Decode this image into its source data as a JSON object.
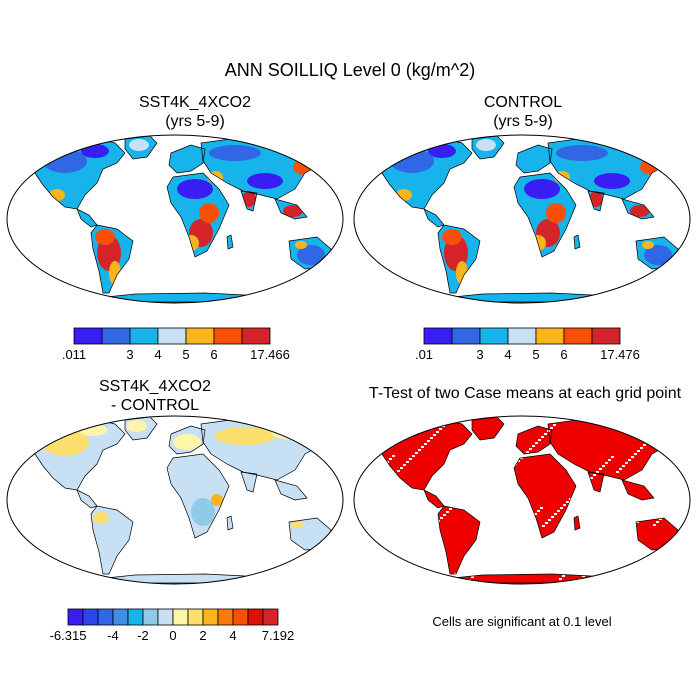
{
  "title": "ANN SOILLIQ Level 0 (kg/m^2)",
  "panels": [
    {
      "id": "sst4k",
      "title_line1": "SST4K_4XCO2",
      "title_line2": "(yrs 5-9)",
      "colorbar": {
        "colors": [
          "#3a1df2",
          "#2f67e4",
          "#16b4ea",
          "#c7e0f3",
          "#fbb31e",
          "#fa4f07",
          "#d4242a"
        ],
        "labels": [
          ".011",
          "3",
          "4",
          "5",
          "6",
          "17.466"
        ]
      },
      "palette": "soil"
    },
    {
      "id": "control",
      "title_line1": "CONTROL",
      "title_line2": "(yrs 5-9)",
      "colorbar": {
        "colors": [
          "#3a1df2",
          "#2f67e4",
          "#16b4ea",
          "#c7e0f3",
          "#fbb31e",
          "#fa4f07",
          "#d4242a"
        ],
        "labels": [
          ".01",
          "3",
          "4",
          "5",
          "6",
          "17.476"
        ]
      },
      "palette": "soil"
    },
    {
      "id": "diff",
      "title_line1": "SST4K_4XCO2",
      "title_line2": "- CONTROL",
      "colorbar": {
        "colors": [
          "#3a1df2",
          "#2a45e8",
          "#2f67e4",
          "#3d8ee8",
          "#16b4ea",
          "#8fcbe8",
          "#c7e0f3",
          "#fdf5a8",
          "#fbe06d",
          "#fbb31e",
          "#fa7b0b",
          "#fa4f07",
          "#e01008",
          "#d4242a"
        ],
        "labels": [
          "-6.315",
          "-4",
          "-2",
          "0",
          "2",
          "4",
          "7.192"
        ]
      },
      "palette": "diff"
    },
    {
      "id": "ttest",
      "title_line1": "T-Test of two Case means at each grid point",
      "title_line2": "",
      "note": "Cells are significant at 0.1 level",
      "palette": "sig"
    }
  ]
}
